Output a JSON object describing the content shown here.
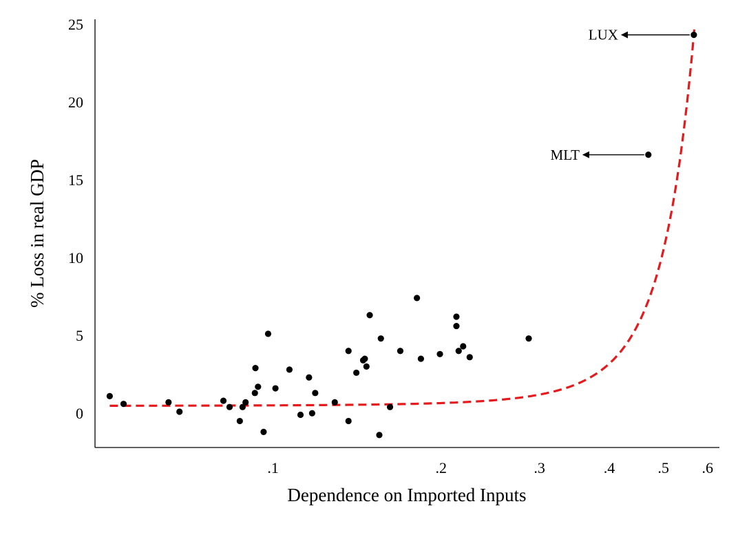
{
  "chart_data": {
    "type": "scatter",
    "xlabel": "Dependence on Imported Inputs",
    "ylabel": "% Loss in real GDP",
    "x_scale": "log",
    "xlim": [
      0.048,
      0.63
    ],
    "ylim": [
      -2.2,
      25.3
    ],
    "x_ticks": [
      {
        "value": 0.1,
        "label": ".1"
      },
      {
        "value": 0.2,
        "label": ".2"
      },
      {
        "value": 0.3,
        "label": ".3"
      },
      {
        "value": 0.4,
        "label": ".4"
      },
      {
        "value": 0.5,
        "label": ".5"
      },
      {
        "value": 0.6,
        "label": ".6"
      }
    ],
    "y_ticks": [
      {
        "value": 0,
        "label": "0"
      },
      {
        "value": 5,
        "label": "5"
      },
      {
        "value": 10,
        "label": "10"
      },
      {
        "value": 15,
        "label": "15"
      },
      {
        "value": 20,
        "label": "20"
      },
      {
        "value": 25,
        "label": "25"
      }
    ],
    "grid": false,
    "legend": "none",
    "points": [
      {
        "x": 0.051,
        "y": 1.1
      },
      {
        "x": 0.054,
        "y": 0.6
      },
      {
        "x": 0.065,
        "y": 0.7
      },
      {
        "x": 0.068,
        "y": 0.1
      },
      {
        "x": 0.0815,
        "y": 0.8
      },
      {
        "x": 0.0836,
        "y": 0.4
      },
      {
        "x": 0.0872,
        "y": -0.5
      },
      {
        "x": 0.0882,
        "y": 0.4
      },
      {
        "x": 0.0893,
        "y": 0.7
      },
      {
        "x": 0.0928,
        "y": 1.3
      },
      {
        "x": 0.093,
        "y": 2.9
      },
      {
        "x": 0.094,
        "y": 1.7
      },
      {
        "x": 0.0962,
        "y": -1.2
      },
      {
        "x": 0.098,
        "y": 5.1
      },
      {
        "x": 0.101,
        "y": 1.6
      },
      {
        "x": 0.107,
        "y": 2.8
      },
      {
        "x": 0.112,
        "y": -0.1
      },
      {
        "x": 0.116,
        "y": 2.3
      },
      {
        "x": 0.1175,
        "y": 0.0
      },
      {
        "x": 0.119,
        "y": 1.3
      },
      {
        "x": 0.129,
        "y": 0.7
      },
      {
        "x": 0.1365,
        "y": -0.5
      },
      {
        "x": 0.1365,
        "y": 4.0
      },
      {
        "x": 0.141,
        "y": 2.6
      },
      {
        "x": 0.145,
        "y": 3.4
      },
      {
        "x": 0.146,
        "y": 3.5
      },
      {
        "x": 0.147,
        "y": 3.0
      },
      {
        "x": 0.149,
        "y": 6.3
      },
      {
        "x": 0.155,
        "y": -1.4
      },
      {
        "x": 0.156,
        "y": 4.8
      },
      {
        "x": 0.162,
        "y": 0.4
      },
      {
        "x": 0.169,
        "y": 4.0
      },
      {
        "x": 0.181,
        "y": 7.4
      },
      {
        "x": 0.184,
        "y": 3.5
      },
      {
        "x": 0.199,
        "y": 3.8
      },
      {
        "x": 0.213,
        "y": 6.2
      },
      {
        "x": 0.213,
        "y": 5.6
      },
      {
        "x": 0.215,
        "y": 4.0
      },
      {
        "x": 0.219,
        "y": 4.3
      },
      {
        "x": 0.225,
        "y": 3.6
      },
      {
        "x": 0.287,
        "y": 4.8
      },
      {
        "x": 0.47,
        "y": 16.6
      },
      {
        "x": 0.567,
        "y": 24.3
      }
    ],
    "fit_line": {
      "style": "dashed",
      "color": "#e41a1c",
      "a": 0.45,
      "b": 0.0152,
      "c": 12.98
    },
    "annotations": [
      {
        "label": "LUX",
        "x": 0.567,
        "y": 24.3,
        "label_x": 0.415
      },
      {
        "label": "MLT",
        "x": 0.47,
        "y": 16.6,
        "label_x": 0.354
      }
    ]
  }
}
